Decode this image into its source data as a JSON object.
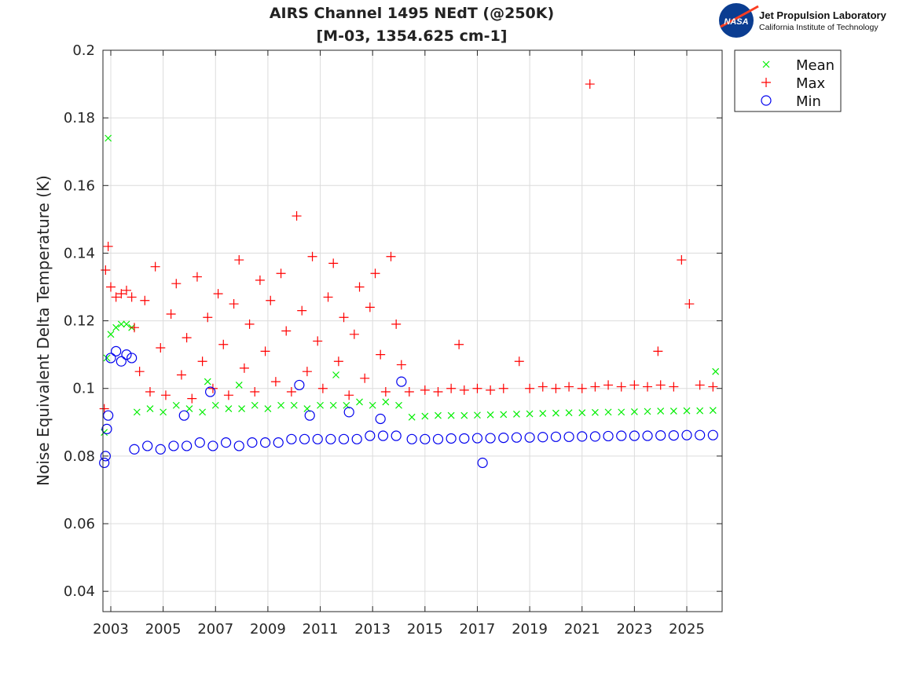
{
  "logo": {
    "agency": "NASA",
    "line1": "Jet Propulsion Laboratory",
    "line2": "California Institute of Technology"
  },
  "chart_data": {
    "type": "scatter",
    "title": [
      "AIRS Channel 1495 NEdT (@250K)",
      "[M-03, 1354.625 cm-1]"
    ],
    "xlabel": "",
    "ylabel": "Noise Equivalent Delta Temperature (K)",
    "xlim": [
      2002.7,
      2026.35
    ],
    "ylim": [
      0.034,
      0.2
    ],
    "xticks": [
      2003,
      2005,
      2007,
      2009,
      2011,
      2013,
      2015,
      2017,
      2019,
      2021,
      2023,
      2025
    ],
    "yticks": [
      0.04,
      0.06,
      0.08,
      0.1,
      0.12,
      0.14,
      0.16,
      0.18,
      0.2
    ],
    "ytick_labels": [
      "0.04",
      "0.06",
      "0.08",
      "0.1",
      "0.12",
      "0.14",
      "0.16",
      "0.18",
      "0.2"
    ],
    "grid": true,
    "legend_position": "outside-top-right",
    "series": [
      {
        "name": "Mean",
        "marker": "x",
        "color": "#00ee00",
        "points": [
          [
            2002.75,
            0.087
          ],
          [
            2002.85,
            0.109
          ],
          [
            2002.9,
            0.174
          ],
          [
            2003.0,
            0.116
          ],
          [
            2003.2,
            0.118
          ],
          [
            2003.4,
            0.119
          ],
          [
            2003.6,
            0.119
          ],
          [
            2003.8,
            0.118
          ],
          [
            2004.0,
            0.093
          ],
          [
            2004.5,
            0.094
          ],
          [
            2005.0,
            0.093
          ],
          [
            2005.5,
            0.095
          ],
          [
            2006.0,
            0.094
          ],
          [
            2006.5,
            0.093
          ],
          [
            2006.7,
            0.102
          ],
          [
            2007.0,
            0.095
          ],
          [
            2007.5,
            0.094
          ],
          [
            2007.9,
            0.101
          ],
          [
            2008.0,
            0.094
          ],
          [
            2008.5,
            0.095
          ],
          [
            2009.0,
            0.094
          ],
          [
            2009.5,
            0.095
          ],
          [
            2010.0,
            0.095
          ],
          [
            2010.5,
            0.094
          ],
          [
            2011.0,
            0.095
          ],
          [
            2011.6,
            0.104
          ],
          [
            2011.5,
            0.095
          ],
          [
            2012.0,
            0.095
          ],
          [
            2012.5,
            0.096
          ],
          [
            2013.0,
            0.095
          ],
          [
            2013.5,
            0.096
          ],
          [
            2014.0,
            0.095
          ],
          [
            2014.5,
            0.0915
          ],
          [
            2015.0,
            0.0918
          ],
          [
            2015.5,
            0.092
          ],
          [
            2016.0,
            0.092
          ],
          [
            2016.5,
            0.092
          ],
          [
            2017.0,
            0.0921
          ],
          [
            2017.5,
            0.0922
          ],
          [
            2018.0,
            0.0923
          ],
          [
            2018.5,
            0.0924
          ],
          [
            2019.0,
            0.0925
          ],
          [
            2019.5,
            0.0926
          ],
          [
            2020.0,
            0.0927
          ],
          [
            2020.5,
            0.0928
          ],
          [
            2021.0,
            0.0928
          ],
          [
            2021.5,
            0.0929
          ],
          [
            2022.0,
            0.093
          ],
          [
            2022.5,
            0.093
          ],
          [
            2023.0,
            0.0931
          ],
          [
            2023.5,
            0.0932
          ],
          [
            2024.0,
            0.0933
          ],
          [
            2024.5,
            0.0933
          ],
          [
            2025.0,
            0.0934
          ],
          [
            2025.5,
            0.0934
          ],
          [
            2026.0,
            0.0935
          ],
          [
            2026.1,
            0.105
          ]
        ]
      },
      {
        "name": "Max",
        "marker": "+",
        "color": "#ff0000",
        "points": [
          [
            2002.75,
            0.094
          ],
          [
            2002.8,
            0.135
          ],
          [
            2002.9,
            0.142
          ],
          [
            2003.0,
            0.13
          ],
          [
            2003.2,
            0.127
          ],
          [
            2003.4,
            0.128
          ],
          [
            2003.6,
            0.129
          ],
          [
            2003.8,
            0.127
          ],
          [
            2003.9,
            0.118
          ],
          [
            2004.1,
            0.105
          ],
          [
            2004.3,
            0.126
          ],
          [
            2004.5,
            0.099
          ],
          [
            2004.7,
            0.136
          ],
          [
            2004.9,
            0.112
          ],
          [
            2005.1,
            0.098
          ],
          [
            2005.3,
            0.122
          ],
          [
            2005.5,
            0.131
          ],
          [
            2005.7,
            0.104
          ],
          [
            2005.9,
            0.115
          ],
          [
            2006.1,
            0.097
          ],
          [
            2006.3,
            0.133
          ],
          [
            2006.5,
            0.108
          ],
          [
            2006.7,
            0.121
          ],
          [
            2006.9,
            0.1
          ],
          [
            2007.1,
            0.128
          ],
          [
            2007.3,
            0.113
          ],
          [
            2007.5,
            0.098
          ],
          [
            2007.7,
            0.125
          ],
          [
            2007.9,
            0.138
          ],
          [
            2008.1,
            0.106
          ],
          [
            2008.3,
            0.119
          ],
          [
            2008.5,
            0.099
          ],
          [
            2008.7,
            0.132
          ],
          [
            2008.9,
            0.111
          ],
          [
            2009.1,
            0.126
          ],
          [
            2009.3,
            0.102
          ],
          [
            2009.5,
            0.134
          ],
          [
            2009.7,
            0.117
          ],
          [
            2009.9,
            0.099
          ],
          [
            2010.1,
            0.151
          ],
          [
            2010.3,
            0.123
          ],
          [
            2010.5,
            0.105
          ],
          [
            2010.7,
            0.139
          ],
          [
            2010.9,
            0.114
          ],
          [
            2011.1,
            0.1
          ],
          [
            2011.3,
            0.127
          ],
          [
            2011.5,
            0.137
          ],
          [
            2011.7,
            0.108
          ],
          [
            2011.9,
            0.121
          ],
          [
            2012.1,
            0.098
          ],
          [
            2012.3,
            0.116
          ],
          [
            2012.5,
            0.13
          ],
          [
            2012.7,
            0.103
          ],
          [
            2012.9,
            0.124
          ],
          [
            2013.1,
            0.134
          ],
          [
            2013.3,
            0.11
          ],
          [
            2013.5,
            0.099
          ],
          [
            2013.7,
            0.139
          ],
          [
            2013.9,
            0.119
          ],
          [
            2014.1,
            0.107
          ],
          [
            2014.4,
            0.099
          ],
          [
            2015.0,
            0.0995
          ],
          [
            2015.5,
            0.099
          ],
          [
            2016.0,
            0.1
          ],
          [
            2016.3,
            0.113
          ],
          [
            2016.5,
            0.0995
          ],
          [
            2017.0,
            0.1
          ],
          [
            2017.5,
            0.0995
          ],
          [
            2018.0,
            0.1
          ],
          [
            2018.6,
            0.108
          ],
          [
            2019.0,
            0.1
          ],
          [
            2019.5,
            0.1005
          ],
          [
            2020.0,
            0.1
          ],
          [
            2020.5,
            0.1005
          ],
          [
            2021.0,
            0.1
          ],
          [
            2021.3,
            0.19
          ],
          [
            2021.5,
            0.1005
          ],
          [
            2022.0,
            0.101
          ],
          [
            2022.5,
            0.1005
          ],
          [
            2023.0,
            0.101
          ],
          [
            2023.5,
            0.1005
          ],
          [
            2023.9,
            0.111
          ],
          [
            2024.0,
            0.101
          ],
          [
            2024.5,
            0.1005
          ],
          [
            2024.8,
            0.138
          ],
          [
            2025.1,
            0.125
          ],
          [
            2025.5,
            0.101
          ],
          [
            2026.0,
            0.1005
          ]
        ]
      },
      {
        "name": "Min",
        "marker": "o",
        "color": "#0000ee",
        "points": [
          [
            2002.75,
            0.078
          ],
          [
            2002.8,
            0.08
          ],
          [
            2002.85,
            0.088
          ],
          [
            2002.9,
            0.092
          ],
          [
            2003.0,
            0.109
          ],
          [
            2003.2,
            0.111
          ],
          [
            2003.4,
            0.108
          ],
          [
            2003.6,
            0.11
          ],
          [
            2003.8,
            0.109
          ],
          [
            2003.9,
            0.082
          ],
          [
            2004.4,
            0.083
          ],
          [
            2004.9,
            0.082
          ],
          [
            2005.4,
            0.083
          ],
          [
            2005.8,
            0.092
          ],
          [
            2005.9,
            0.083
          ],
          [
            2006.4,
            0.084
          ],
          [
            2006.8,
            0.099
          ],
          [
            2006.9,
            0.083
          ],
          [
            2007.4,
            0.084
          ],
          [
            2007.9,
            0.083
          ],
          [
            2008.4,
            0.084
          ],
          [
            2008.9,
            0.084
          ],
          [
            2009.4,
            0.084
          ],
          [
            2009.9,
            0.085
          ],
          [
            2010.2,
            0.101
          ],
          [
            2010.4,
            0.085
          ],
          [
            2010.6,
            0.092
          ],
          [
            2010.9,
            0.085
          ],
          [
            2011.4,
            0.085
          ],
          [
            2011.9,
            0.085
          ],
          [
            2012.1,
            0.093
          ],
          [
            2012.4,
            0.085
          ],
          [
            2012.9,
            0.086
          ],
          [
            2013.3,
            0.091
          ],
          [
            2013.4,
            0.086
          ],
          [
            2013.9,
            0.086
          ],
          [
            2014.1,
            0.102
          ],
          [
            2014.5,
            0.085
          ],
          [
            2015.0,
            0.085
          ],
          [
            2015.5,
            0.085
          ],
          [
            2016.0,
            0.0852
          ],
          [
            2016.5,
            0.0852
          ],
          [
            2017.0,
            0.0853
          ],
          [
            2017.2,
            0.078
          ],
          [
            2017.5,
            0.0853
          ],
          [
            2018.0,
            0.0854
          ],
          [
            2018.5,
            0.0855
          ],
          [
            2019.0,
            0.0855
          ],
          [
            2019.5,
            0.0856
          ],
          [
            2020.0,
            0.0857
          ],
          [
            2020.5,
            0.0857
          ],
          [
            2021.0,
            0.0858
          ],
          [
            2021.5,
            0.0858
          ],
          [
            2022.0,
            0.0859
          ],
          [
            2022.5,
            0.086
          ],
          [
            2023.0,
            0.086
          ],
          [
            2023.5,
            0.086
          ],
          [
            2024.0,
            0.0861
          ],
          [
            2024.5,
            0.0861
          ],
          [
            2025.0,
            0.0862
          ],
          [
            2025.5,
            0.0862
          ],
          [
            2026.0,
            0.0862
          ]
        ]
      }
    ]
  }
}
